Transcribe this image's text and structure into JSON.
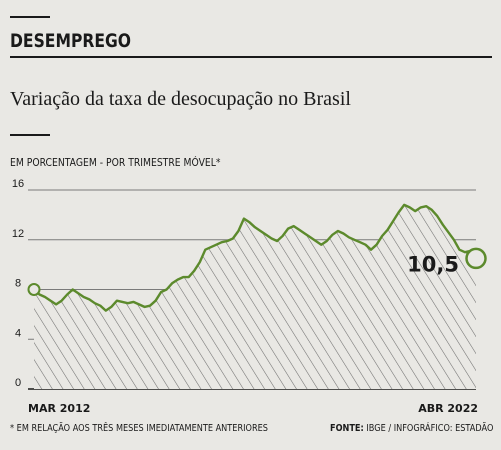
{
  "section": "DESEMPREGO",
  "headline": "Variação da taxa de desocupação no Brasil",
  "unit_label": "EM PORCENTAGEM - POR TRIMESTRE MÓVEL*",
  "footnote": "* EM RELAÇÃO AOS TRÊS MESES IMEDIATAMENTE ANTERIORES",
  "source_label": "FONTE:",
  "source_text": "IBGE / INFOGRÁFICO: ESTADÃO",
  "colors": {
    "line": "#5c8a2c",
    "hatch": "#6f6f6f",
    "grid": "#7a7a7a",
    "background": "#e9e8e4"
  },
  "chart_data": {
    "type": "area",
    "x_start_label": "MAR 2012",
    "x_end_label": "ABR 2022",
    "ylim": [
      0,
      16
    ],
    "yticks": [
      0,
      4,
      8,
      12,
      16
    ],
    "grid": true,
    "last_value_label": "10,5",
    "series": [
      {
        "values": [
          8.0,
          7.6,
          7.4,
          7.1,
          6.8,
          7.1,
          7.6,
          8.0,
          7.7,
          7.4,
          7.2,
          6.9,
          6.7,
          6.3,
          6.6,
          7.1,
          7.0,
          6.9,
          7.0,
          6.8,
          6.6,
          6.7,
          7.1,
          7.8,
          8.0,
          8.5,
          8.8,
          9.0,
          9.0,
          9.5,
          10.2,
          11.2,
          11.4,
          11.6,
          11.8,
          11.9,
          12.1,
          12.7,
          13.7,
          13.4,
          13.0,
          12.7,
          12.4,
          12.1,
          11.9,
          12.3,
          12.9,
          13.1,
          12.8,
          12.5,
          12.2,
          11.9,
          11.6,
          11.9,
          12.4,
          12.7,
          12.5,
          12.2,
          12.0,
          11.8,
          11.6,
          11.2,
          11.6,
          12.3,
          12.8,
          13.5,
          14.2,
          14.8,
          14.6,
          14.3,
          14.6,
          14.7,
          14.4,
          13.9,
          13.2,
          12.6,
          12.0,
          11.2,
          11.0,
          11.1,
          10.5
        ]
      }
    ]
  }
}
